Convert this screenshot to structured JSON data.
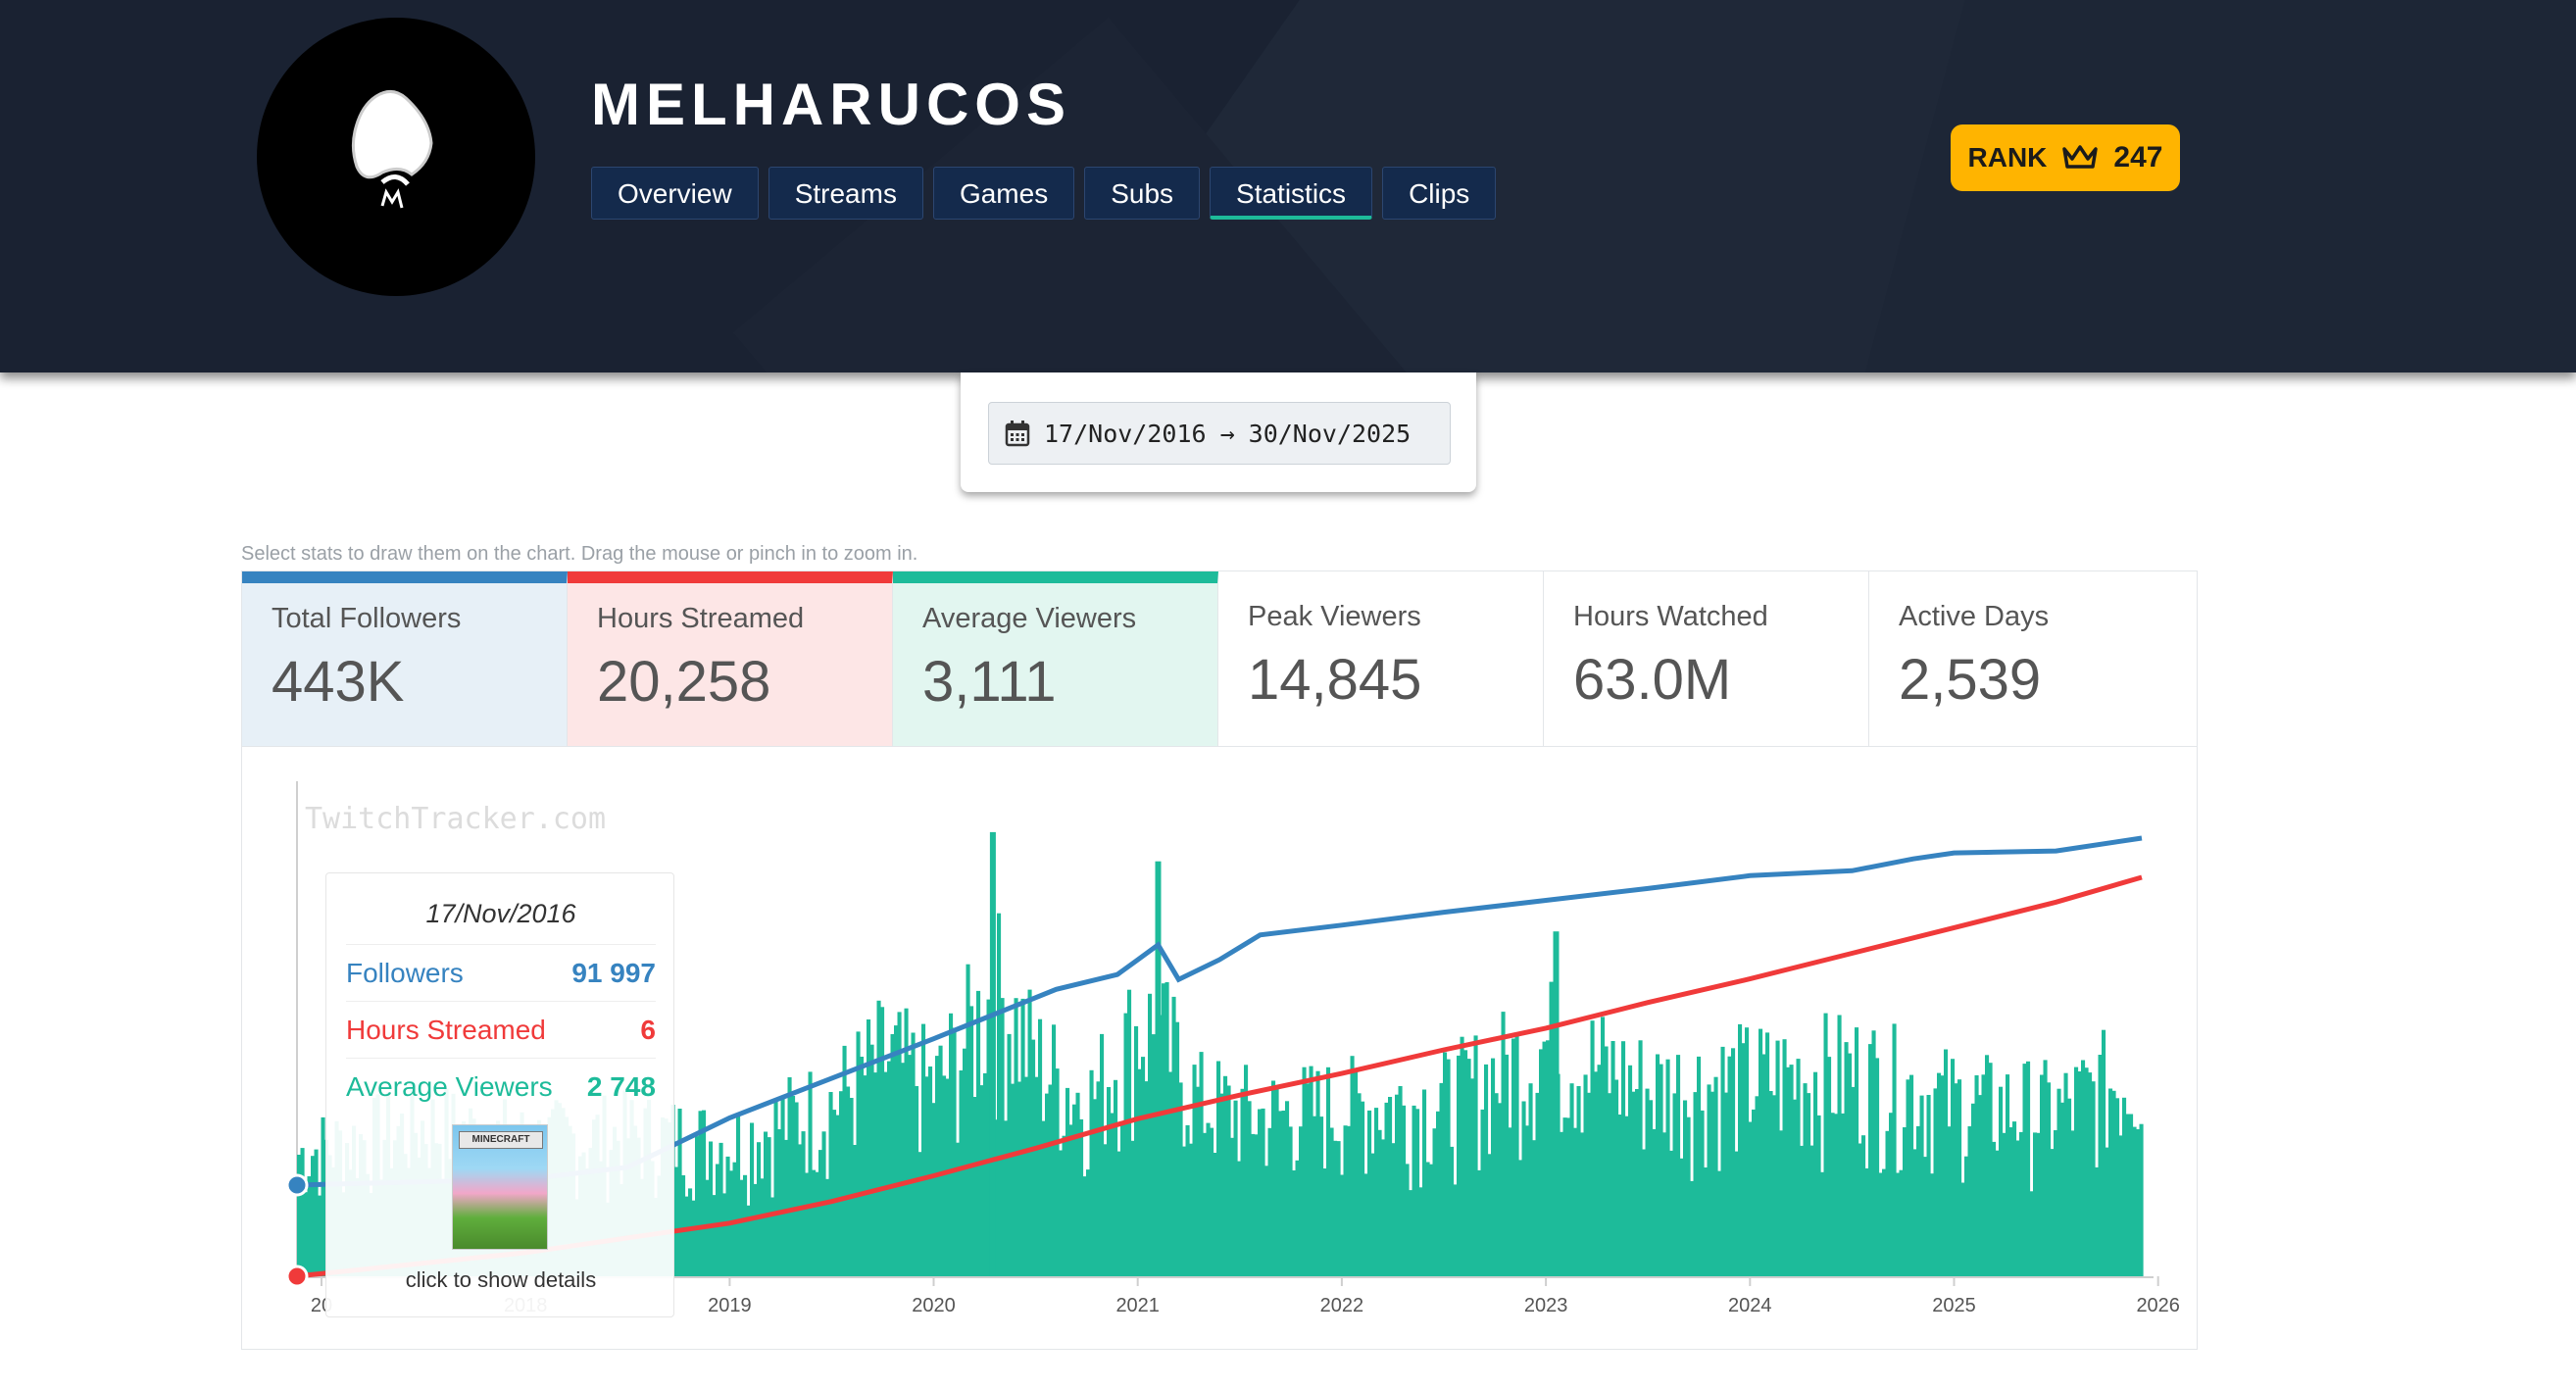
{
  "channel": {
    "name": "MELHARUCOS"
  },
  "nav": {
    "tabs": [
      {
        "label": "Overview",
        "active": false
      },
      {
        "label": "Streams",
        "active": false
      },
      {
        "label": "Games",
        "active": false
      },
      {
        "label": "Subs",
        "active": false
      },
      {
        "label": "Statistics",
        "active": true
      },
      {
        "label": "Clips",
        "active": false
      }
    ]
  },
  "rank": {
    "label": "RANK",
    "icon": "crown-icon",
    "value": "247"
  },
  "date_range": {
    "icon": "calendar-icon",
    "start": "17/Nov/2016",
    "arrow": "→",
    "end": "30/Nov/2025"
  },
  "hint": "Select stats to draw them on the chart. Drag the mouse or pinch in to zoom in.",
  "stats": [
    {
      "label": "Total Followers",
      "value": "443K",
      "color": "#3683c0"
    },
    {
      "label": "Hours Streamed",
      "value": "20,258",
      "color": "#f03a3a"
    },
    {
      "label": "Average Viewers",
      "value": "3,111",
      "color": "#1dbb9a"
    },
    {
      "label": "Peak Viewers",
      "value": "14,845"
    },
    {
      "label": "Hours Watched",
      "value": "63.0M"
    },
    {
      "label": "Active Days",
      "value": "2,539"
    }
  ],
  "tooltip": {
    "date": "17/Nov/2016",
    "rows": [
      {
        "label": "Followers",
        "value": "91 997",
        "color": "#3683c0"
      },
      {
        "label": "Hours Streamed",
        "value": "6",
        "color": "#f03a3a"
      },
      {
        "label": "Average Viewers",
        "value": "2 748",
        "color": "#1dbb9a"
      }
    ],
    "game_art": "MINECRAFT",
    "click_text": "click to show details"
  },
  "chart_data": {
    "type": "line",
    "watermark": "TwitchTracker.com",
    "x_ticks": [
      "2017",
      "2018",
      "2019",
      "2020",
      "2021",
      "2022",
      "2023",
      "2024",
      "2025",
      "2026"
    ],
    "x_tick_visible": [
      "20",
      "2018",
      "2019",
      "2020",
      "2021",
      "2022",
      "2023",
      "2024",
      "2025",
      "2026"
    ],
    "xlim": [
      2016.88,
      2025.92
    ],
    "series": [
      {
        "name": "Followers",
        "color": "#3683c0",
        "kind": "line",
        "x": [
          2016.88,
          2018.0,
          2018.5,
          2019.0,
          2019.5,
          2020.0,
          2020.3,
          2020.6,
          2020.9,
          2021.0,
          2021.1,
          2021.2,
          2021.4,
          2021.6,
          2022.0,
          2022.5,
          2023.0,
          2023.5,
          2024.0,
          2024.5,
          2024.8,
          2025.0,
          2025.5,
          2025.92
        ],
        "y": [
          91997,
          98000,
          110000,
          160000,
          200000,
          240000,
          265000,
          290000,
          305000,
          320000,
          335000,
          300000,
          320000,
          345000,
          355000,
          368000,
          380000,
          392000,
          405000,
          410000,
          422000,
          428000,
          430000,
          443000
        ]
      },
      {
        "name": "Hours Streamed",
        "color": "#f03a3a",
        "kind": "line",
        "x": [
          2016.88,
          2018.0,
          2019.0,
          2019.5,
          2020.0,
          2020.5,
          2021.0,
          2021.5,
          2022.0,
          2022.5,
          2023.0,
          2023.5,
          2024.0,
          2024.5,
          2025.0,
          2025.5,
          2025.92
        ],
        "y": [
          6,
          1200,
          2700,
          3800,
          5100,
          6500,
          8000,
          9200,
          10300,
          11500,
          12600,
          13900,
          15100,
          16400,
          17700,
          19000,
          20258
        ]
      },
      {
        "name": "Average Viewers",
        "color": "#1dbb9a",
        "kind": "bar",
        "envelope_x": [
          2016.88,
          2017.5,
          2018.0,
          2018.5,
          2019.0,
          2019.5,
          2019.75,
          2020.0,
          2020.3,
          2020.5,
          2020.75,
          2021.0,
          2021.1,
          2021.3,
          2021.6,
          2022.0,
          2022.5,
          2023.0,
          2023.5,
          2024.0,
          2024.5,
          2025.0,
          2025.5,
          2025.92
        ],
        "envelope_y": [
          2748,
          3400,
          3000,
          3200,
          3000,
          3900,
          4900,
          4200,
          6400,
          4800,
          3900,
          5600,
          5400,
          3900,
          3600,
          3800,
          3900,
          5200,
          4200,
          4400,
          4600,
          3900,
          3700,
          4700
        ],
        "peaks_x": [
          2020.29,
          2021.1,
          2023.05
        ],
        "peaks_y": [
          7600,
          7100,
          5900
        ],
        "ymax": 8000
      }
    ]
  }
}
